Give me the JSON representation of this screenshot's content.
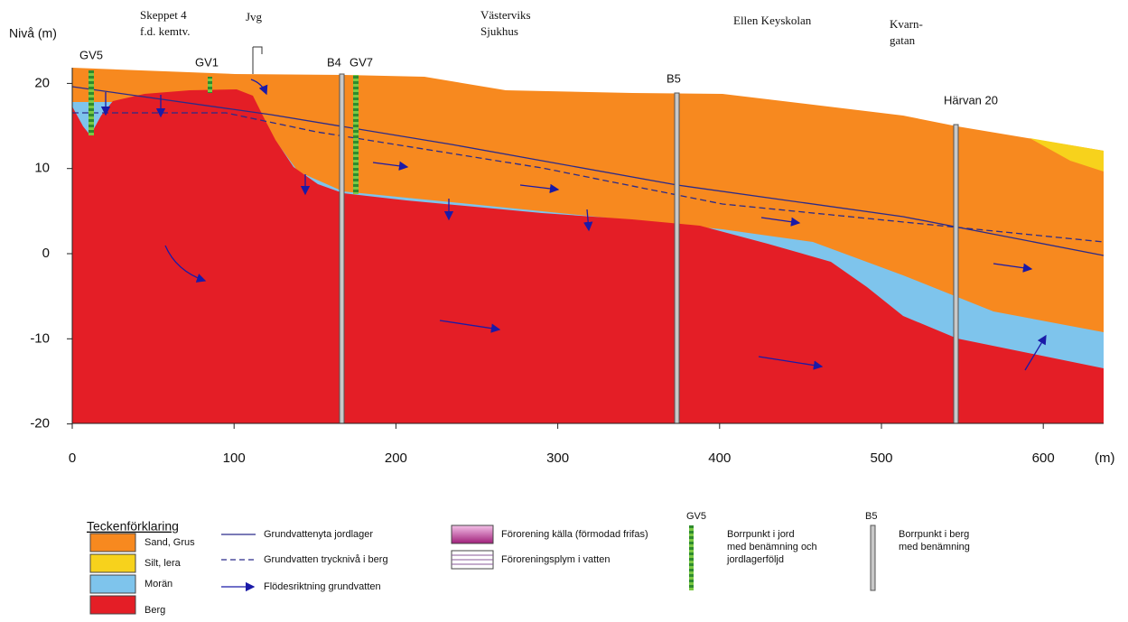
{
  "axes": {
    "y_label": "Nivå (m)",
    "x_unit": "(m)",
    "xticks": [
      0,
      100,
      200,
      300,
      400,
      500,
      600
    ],
    "yticks": [
      20,
      10,
      0,
      -10,
      -20
    ]
  },
  "places": [
    [
      "Skeppet 4",
      "f.d. kemtv."
    ],
    [
      "Jvg"
    ],
    [
      "Västerviks",
      "Sjukhus"
    ],
    [
      "Ellen Keyskolan"
    ],
    [
      "Kvarn-",
      "gatan"
    ],
    [
      "Härvan 20"
    ]
  ],
  "boreholes": [
    "GV5",
    "GV1",
    "B4",
    "GV7",
    "B5"
  ],
  "legend": {
    "title": "Teckenförklaring",
    "soils": [
      "Sand, Grus",
      "Silt, lera",
      "Morän",
      "Berg"
    ],
    "lines": [
      "Grundvattenyta jordlager",
      "Grundvatten trycknivå i berg",
      "Flödesriktning grundvatten"
    ],
    "pollution": [
      "Förorening källa (förmodad frifas)",
      "Föroreningsplym i vatten"
    ],
    "borehole_soil": {
      "label": "GV5",
      "text": [
        "Borrpunkt i jord",
        "med benämning och",
        "jordlagerföljd"
      ]
    },
    "borehole_rock": {
      "label": "B5",
      "text": [
        "Borrpunkt i berg",
        "med benämning"
      ]
    }
  }
}
